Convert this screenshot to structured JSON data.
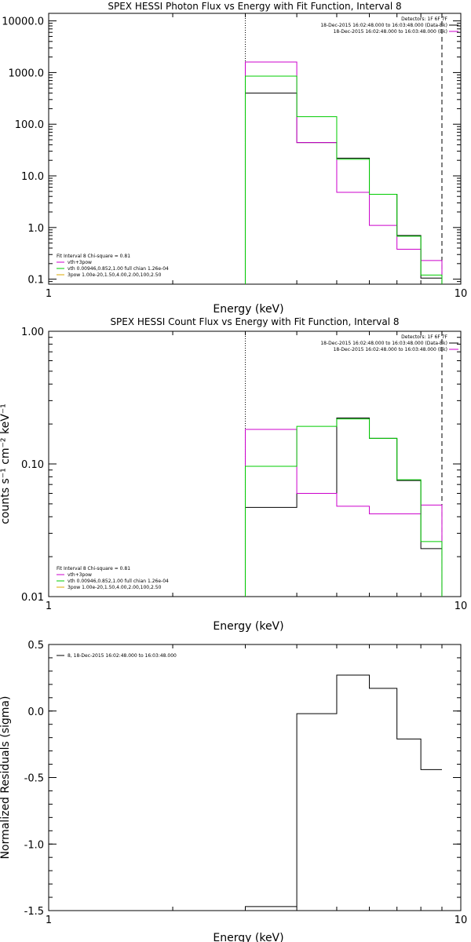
{
  "chart_data": [
    {
      "type": "line",
      "title": "SPEX HESSI Photon Flux vs Energy with Fit Function, Interval 8",
      "xlabel": "Energy (keV)",
      "ylabel": "",
      "x_scale": "log",
      "y_scale": "log",
      "xlim": [
        1,
        10
      ],
      "ylim": [
        0.08,
        14000
      ],
      "xticks": [
        {
          "v": 1,
          "label": "1"
        },
        {
          "v": 10,
          "label": "10"
        }
      ],
      "yticks": [
        {
          "v": 0.1,
          "label": "0.1"
        },
        {
          "v": 1,
          "label": "1.0"
        },
        {
          "v": 10,
          "label": "10.0"
        },
        {
          "v": 100,
          "label": "100.0"
        },
        {
          "v": 1000,
          "label": "1000.0"
        },
        {
          "v": 10000,
          "label": "10000.0"
        }
      ],
      "vlines": [
        {
          "x": 3,
          "style": "dotted"
        },
        {
          "x": 9,
          "style": "dashed"
        }
      ],
      "edges": [
        3,
        4,
        5,
        6,
        7,
        8,
        9
      ],
      "series": [
        {
          "name": "",
          "color": "#000000",
          "values": [
            400,
            44,
            22,
            4.4,
            0.7,
            0.105
          ]
        },
        {
          "name": "vth+3pow",
          "color": "#cc00cc",
          "values": [
            1600,
            44,
            4.8,
            1.1,
            0.38,
            0.23
          ]
        },
        {
          "name": "vth 0.00946,0.852,1.00 full chian 1.26e-04",
          "color": "#00cc00",
          "values": [
            850,
            140,
            21,
            4.4,
            0.68,
            0.12
          ]
        }
      ],
      "legend_right": {
        "header": "Detectors: 1F 6F 7F",
        "entries": [
          {
            "text": "18-Dec-2015 16:02:48.000 to 16:03:48.000 (Data-Bk)",
            "color": "#000000"
          },
          {
            "text": "18-Dec-2015 16:02:48.000 to 16:03:48.000 (Bk)",
            "color": "#cc00cc"
          }
        ]
      },
      "legend_left": {
        "header": "Fit Interval 8   Chi-square = 0.81",
        "entries": [
          {
            "text": "vth+3pow",
            "color": "#cc00cc"
          },
          {
            "text": "vth 0.00946,0.852,1.00  full chian 1.26e-04",
            "color": "#00cc00"
          },
          {
            "text": "3pow 1.00e-20,1.50,4.00,2.00,100,2.50",
            "color": "#ddaa00"
          }
        ]
      }
    },
    {
      "type": "line",
      "title": "SPEX HESSI Count Flux vs Energy with Fit Function, Interval 8",
      "xlabel": "Energy (keV)",
      "ylabel": "counts s⁻¹ cm⁻² keV⁻¹",
      "x_scale": "log",
      "y_scale": "log",
      "xlim": [
        1,
        10
      ],
      "ylim": [
        0.01,
        1.0
      ],
      "xticks": [
        {
          "v": 1,
          "label": "1"
        },
        {
          "v": 10,
          "label": "10"
        }
      ],
      "yticks": [
        {
          "v": 0.01,
          "label": "0.01"
        },
        {
          "v": 0.1,
          "label": "0.10"
        },
        {
          "v": 1,
          "label": "1.00"
        }
      ],
      "vlines": [
        {
          "x": 3,
          "style": "dotted"
        },
        {
          "x": 9,
          "style": "dashed"
        }
      ],
      "edges": [
        3,
        4,
        5,
        6,
        7,
        8,
        9
      ],
      "series": [
        {
          "name": "",
          "color": "#000000",
          "values": [
            0.047,
            0.06,
            0.222,
            0.156,
            0.075,
            0.023
          ]
        },
        {
          "name": "vth+3pow",
          "color": "#cc00cc",
          "values": [
            0.182,
            0.06,
            0.048,
            0.042,
            0.042,
            0.049
          ]
        },
        {
          "name": "vth 0.00946,0.852,1.00 full chian 1.26e-04",
          "color": "#00cc00",
          "values": [
            0.096,
            0.192,
            0.218,
            0.156,
            0.076,
            0.026
          ]
        }
      ],
      "legend_right": {
        "header": "Detectors: 1F 6F 7F",
        "entries": [
          {
            "text": "18-Dec-2015 16:02:48.000 to 16:03:48.000 (Data-Bk)",
            "color": "#000000"
          },
          {
            "text": "18-Dec-2015 16:02:48.000 to 16:03:48.000 (Bk)",
            "color": "#cc00cc"
          }
        ]
      },
      "legend_left": {
        "header": "Fit Interval 8   Chi-square = 0.81",
        "entries": [
          {
            "text": "vth+3pow",
            "color": "#cc00cc"
          },
          {
            "text": "vth 0.00946,0.852,1.00  full chian 1.26e-04",
            "color": "#00cc00"
          },
          {
            "text": "3pow 1.00e-20,1.50,4.00,2.00,100,2.50",
            "color": "#ddaa00"
          }
        ]
      }
    },
    {
      "type": "line",
      "title": "",
      "xlabel": "Energy (keV)",
      "ylabel": "Normalized Residuals (sigma)",
      "x_scale": "log",
      "y_scale": "linear",
      "xlim": [
        1,
        10
      ],
      "ylim": [
        -1.5,
        0.5
      ],
      "xticks": [
        {
          "v": 1,
          "label": "1"
        },
        {
          "v": 10,
          "label": "10"
        }
      ],
      "yticks": [
        {
          "v": -1.5,
          "label": "-1.5"
        },
        {
          "v": -1.0,
          "label": "-1.0"
        },
        {
          "v": -0.5,
          "label": "-0.5"
        },
        {
          "v": 0.0,
          "label": "0.0"
        },
        {
          "v": 0.5,
          "label": "0.5"
        }
      ],
      "vlines": [],
      "edges": [
        3,
        4,
        5,
        6,
        7,
        8,
        9
      ],
      "series": [
        {
          "name": "8, 18-Dec-2015 16:02:48.000 to 16:03:48.000",
          "color": "#000000",
          "values": [
            -1.47,
            -0.02,
            0.27,
            0.17,
            -0.21,
            -0.44
          ]
        }
      ],
      "legend_left": {
        "header": "",
        "entries": [
          {
            "text": "8, 18-Dec-2015 16:02:48.000 to 16:03:48.000",
            "color": "#000000"
          }
        ]
      }
    }
  ]
}
